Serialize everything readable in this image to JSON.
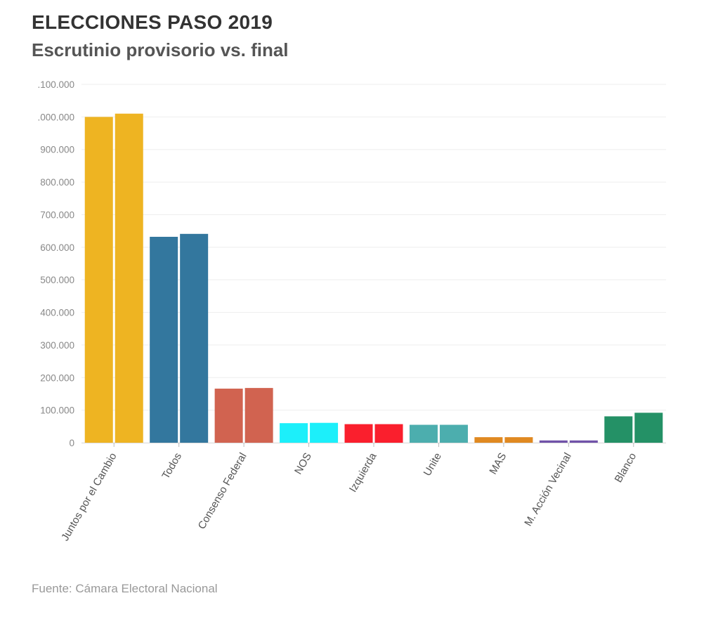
{
  "header": {
    "title": "ELECCIONES PASO 2019",
    "subtitle": "Escrutinio provisorio vs. final"
  },
  "footer": {
    "source": "Fuente: Cámara Electoral Nacional"
  },
  "chart_data": {
    "type": "bar",
    "title": "ELECCIONES PASO 2019",
    "subtitle": "Escrutinio provisorio vs. final",
    "xlabel": "",
    "ylabel": "",
    "ylim": [
      0,
      1100000
    ],
    "grid": true,
    "legend": "none",
    "yticks": [
      {
        "value": 0,
        "label": "0"
      },
      {
        "value": 100000,
        "label": "100.000"
      },
      {
        "value": 200000,
        "label": "200.000"
      },
      {
        "value": 300000,
        "label": "300.000"
      },
      {
        "value": 400000,
        "label": "400.000"
      },
      {
        "value": 500000,
        "label": "500.000"
      },
      {
        "value": 600000,
        "label": "600.000"
      },
      {
        "value": 700000,
        "label": "700.000"
      },
      {
        "value": 800000,
        "label": "800.000"
      },
      {
        "value": 900000,
        "label": "900.000"
      },
      {
        "value": 1000000,
        "label": ".000.000"
      },
      {
        "value": 1100000,
        "label": ".100.000"
      }
    ],
    "categories": [
      {
        "label": "Juntos por el Cambio",
        "color": "#EEB422",
        "values": [
          1000000,
          1010000
        ]
      },
      {
        "label": "Todos",
        "color": "#33779E",
        "values": [
          632000,
          641000
        ]
      },
      {
        "label": "Consenso Federal",
        "color": "#D16350",
        "values": [
          166000,
          168000
        ]
      },
      {
        "label": "NOS",
        "color": "#1CEFFA",
        "values": [
          60000,
          61000
        ]
      },
      {
        "label": "Izquierda",
        "color": "#FA1F2D",
        "values": [
          57000,
          57000
        ]
      },
      {
        "label": "Unite",
        "color": "#4CAEAE",
        "values": [
          55000,
          55000
        ]
      },
      {
        "label": "MAS",
        "color": "#E08921",
        "values": [
          17000,
          17000
        ]
      },
      {
        "label": "M. Acción Vecinal",
        "color": "#7052A8",
        "values": [
          7000,
          7000
        ]
      },
      {
        "label": "Blanco",
        "color": "#249166",
        "values": [
          81000,
          92000
        ]
      }
    ]
  }
}
